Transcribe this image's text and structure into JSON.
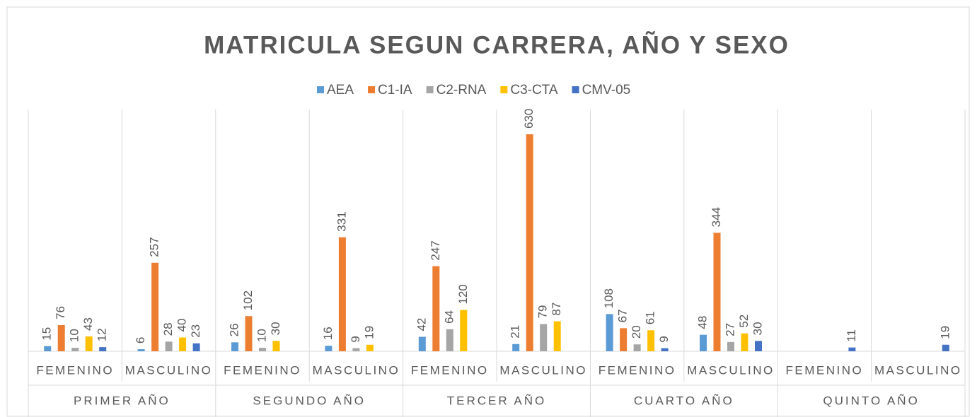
{
  "chart_data": {
    "type": "bar",
    "title": "MATRICULA SEGUN CARRERA, AÑO Y SEXO",
    "categories": [
      "FEMENINO",
      "MASCULINO",
      "FEMENINO",
      "MASCULINO",
      "FEMENINO",
      "MASCULINO",
      "FEMENINO",
      "MASCULINO",
      "FEMENINO",
      "MASCULINO"
    ],
    "groups": [
      "PRIMER AÑO",
      "SEGUNDO AÑO",
      "TERCER AÑO",
      "CUARTO AÑO",
      "QUINTO AÑO"
    ],
    "series": [
      {
        "name": "AEA",
        "color": "#5b9bd5",
        "values": [
          15,
          6,
          26,
          16,
          42,
          21,
          108,
          48,
          null,
          null
        ]
      },
      {
        "name": "C1-IA",
        "color": "#ed7d31",
        "values": [
          76,
          257,
          102,
          331,
          247,
          630,
          67,
          344,
          null,
          null
        ]
      },
      {
        "name": "C2-RNA",
        "color": "#a5a5a5",
        "values": [
          10,
          28,
          10,
          9,
          64,
          79,
          20,
          27,
          null,
          null
        ]
      },
      {
        "name": "C3-CTA",
        "color": "#ffc000",
        "values": [
          43,
          40,
          30,
          19,
          120,
          87,
          61,
          52,
          null,
          null
        ]
      },
      {
        "name": "CMV-05",
        "color": "#4472c4",
        "values": [
          12,
          23,
          null,
          null,
          null,
          null,
          9,
          30,
          11,
          19
        ]
      }
    ],
    "legend": "top"
  }
}
